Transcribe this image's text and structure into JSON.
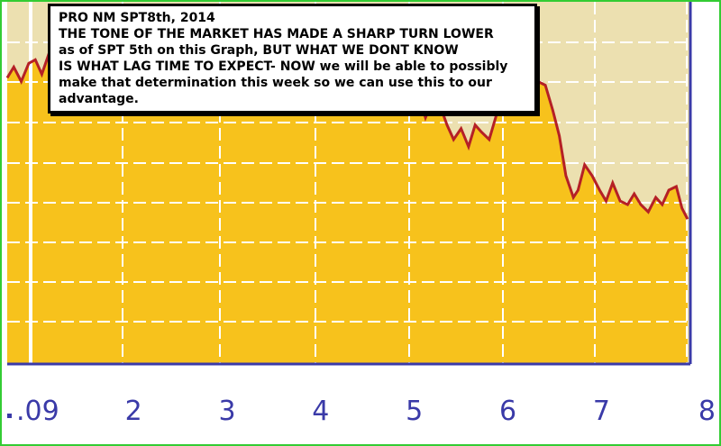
{
  "annotation": {
    "lines": [
      "PRO NM SPT8th, 2014",
      "THE TONE OF THE MARKET HAS MADE A SHARP TURN LOWER",
      "as of SPT 5th on this Graph, BUT WHAT WE DONT KNOW",
      "IS WHAT LAG TIME TO EXPECT- NOW we will be able to possibly",
      "make that determination this week so we can use this to our",
      "advantage."
    ]
  },
  "colors": {
    "area_fill": "#f7c21c",
    "background": "#ece0b0",
    "line": "#b52025",
    "grid": "#ffffff",
    "axis": "#3a3aa8",
    "frame": "#33cc33"
  },
  "chart_data": {
    "type": "area",
    "title": "",
    "xlabel": "",
    "ylabel": "",
    "x_tick_labels": [
      ".09",
      "2",
      "3",
      "4",
      "5",
      "6",
      "7",
      "8"
    ],
    "x_ticks": [
      1,
      2,
      3,
      4,
      5,
      6,
      7,
      8
    ],
    "xlim": [
      0.65,
      7.95
    ],
    "ylim": [
      0,
      100
    ],
    "grid": true,
    "legend": "none",
    "series": [
      {
        "x": [
          0.65,
          0.72,
          0.8,
          0.88,
          0.95,
          1.02,
          1.1,
          1.18,
          1.25,
          1.32,
          1.4,
          1.48,
          1.55,
          1.62,
          1.7,
          1.78,
          1.85,
          1.92,
          2.0,
          2.08,
          2.15,
          2.22,
          2.3,
          2.38,
          2.45,
          2.52,
          2.6,
          2.68,
          2.75,
          2.82,
          2.9,
          2.98,
          3.05,
          3.12,
          3.2,
          3.28,
          3.35,
          3.42,
          3.5,
          3.58,
          3.65,
          3.72,
          3.8,
          3.88,
          3.95,
          4.02,
          4.1,
          4.18,
          4.25,
          4.32,
          4.4,
          4.48,
          4.55,
          4.62,
          4.7,
          4.78,
          4.85,
          4.92,
          4.98,
          5.05,
          5.12,
          5.2,
          5.28,
          5.35,
          5.42,
          5.5,
          5.58,
          5.65,
          5.72,
          5.8,
          5.88,
          5.95,
          6.02,
          6.1,
          6.18,
          6.25,
          6.32,
          6.4,
          6.48,
          6.55,
          6.62,
          6.7,
          6.75,
          6.82,
          6.9,
          6.98,
          7.05,
          7.12,
          7.2,
          7.28,
          7.35,
          7.42,
          7.5,
          7.58,
          7.65,
          7.72,
          7.8,
          7.86,
          7.92
        ],
        "y": [
          79,
          82,
          78,
          83,
          84,
          80,
          86,
          83,
          81,
          85,
          84,
          82,
          85,
          80,
          86,
          84,
          87,
          85,
          88,
          86,
          83,
          86,
          80,
          85,
          84,
          87,
          85,
          88,
          87,
          86,
          84,
          90,
          89,
          86,
          84,
          88,
          90,
          91,
          87,
          86,
          89,
          90,
          86,
          88,
          87,
          90,
          89,
          87,
          84,
          88,
          90,
          89,
          86,
          92,
          90,
          83,
          75,
          69,
          70,
          74,
          68,
          73,
          71,
          66,
          62,
          65,
          60,
          66,
          64,
          62,
          69,
          73,
          72,
          75,
          79,
          80,
          78,
          77,
          70,
          63,
          52,
          46,
          48,
          55,
          52,
          48,
          45,
          50,
          45,
          44,
          47,
          44,
          42,
          46,
          44,
          48,
          49,
          43,
          40
        ]
      }
    ]
  }
}
